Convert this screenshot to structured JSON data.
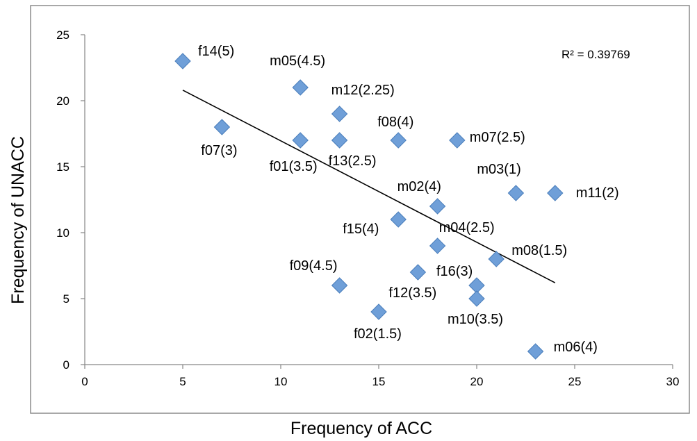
{
  "chart_data": {
    "type": "scatter",
    "xlabel": "Frequency of ACC",
    "ylabel": "Frequency of UNACC",
    "xlim": [
      0,
      30
    ],
    "ylim": [
      0,
      25
    ],
    "xticks": [
      "0",
      "5",
      "10",
      "15",
      "20",
      "25",
      "30"
    ],
    "yticks": [
      "0",
      "5",
      "10",
      "15",
      "20",
      "25"
    ],
    "grid": false,
    "legend": "none",
    "marker_color": "#6f9fd8",
    "annotation": "R² = 0.39769",
    "trendline": {
      "type": "linear",
      "x": [
        5,
        24
      ],
      "y": [
        20.8,
        6.2
      ]
    },
    "points": [
      {
        "label": "f14(5)",
        "x": 5,
        "y": 23
      },
      {
        "label": "m05(4.5)",
        "x": 11,
        "y": 21
      },
      {
        "label": "m12(2.25)",
        "x": 13,
        "y": 19
      },
      {
        "label": "f07(3)",
        "x": 7,
        "y": 18
      },
      {
        "label": "f01(3.5)",
        "x": 11,
        "y": 17
      },
      {
        "label": "f13(2.5)",
        "x": 13,
        "y": 17
      },
      {
        "label": "f08(4)",
        "x": 16,
        "y": 17
      },
      {
        "label": "m07(2.5)",
        "x": 19,
        "y": 17
      },
      {
        "label": "m03(1)",
        "x": 22,
        "y": 13
      },
      {
        "label": "m11(2)",
        "x": 24,
        "y": 13
      },
      {
        "label": "m02(4)",
        "x": 18,
        "y": 12
      },
      {
        "label": "f15(4)",
        "x": 16,
        "y": 11
      },
      {
        "label": "m04(2.5)",
        "x": 18,
        "y": 9
      },
      {
        "label": "m08(1.5)",
        "x": 21,
        "y": 8
      },
      {
        "label": "f12(3.5)",
        "x": 17,
        "y": 7
      },
      {
        "label": "f09(4.5)",
        "x": 13,
        "y": 6
      },
      {
        "label": "f16(3)",
        "x": 20,
        "y": 6
      },
      {
        "label": "m10(3.5)",
        "x": 20,
        "y": 5
      },
      {
        "label": "f02(1.5)",
        "x": 15,
        "y": 4
      },
      {
        "label": "m06(4)",
        "x": 23,
        "y": 1
      }
    ]
  }
}
